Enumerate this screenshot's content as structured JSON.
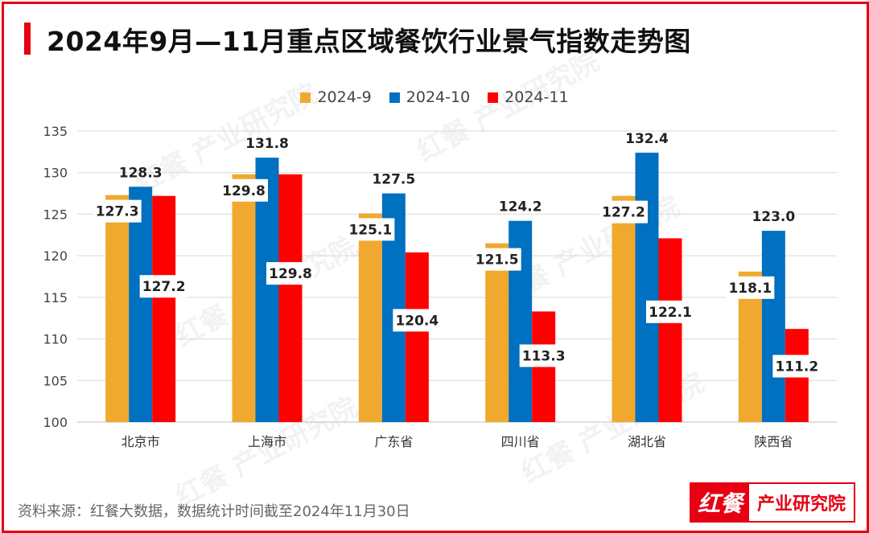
{
  "title": "2024年9月—11月重点区域餐饮行业景气指数走势图",
  "source_note": "资料来源：红餐大数据，数据统计时间截至2024年11月30日",
  "brand": {
    "logo": "红餐",
    "name": "产业研究院"
  },
  "watermark": {
    "logo": "红餐",
    "name": "产业研究院"
  },
  "colors": {
    "series": [
      "#f0a92e",
      "#0070c0",
      "#ff0000"
    ],
    "accent": "#e60012"
  },
  "chart_data": {
    "type": "bar",
    "categories": [
      "北京市",
      "上海市",
      "广东省",
      "四川省",
      "湖北省",
      "陕西省"
    ],
    "series": [
      {
        "name": "2024-9",
        "values": [
          127.3,
          129.8,
          125.1,
          121.5,
          127.2,
          118.1
        ]
      },
      {
        "name": "2024-10",
        "values": [
          128.3,
          131.8,
          127.5,
          124.2,
          132.4,
          123.0
        ]
      },
      {
        "name": "2024-11",
        "values": [
          127.2,
          129.8,
          120.4,
          113.3,
          122.1,
          111.2
        ]
      }
    ],
    "ylim": [
      100,
      135
    ],
    "yticks": [
      100,
      105,
      110,
      115,
      120,
      125,
      130,
      135
    ],
    "grid": true,
    "legend": "top-center"
  }
}
